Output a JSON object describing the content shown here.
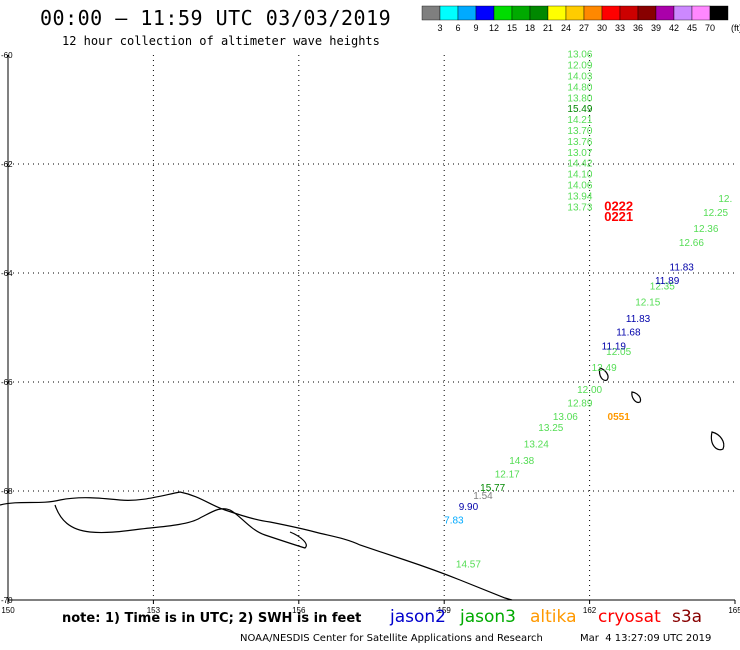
{
  "header": {
    "title": "00:00 — 11:59 UTC 03/03/2019",
    "subtitle": "12 hour collection of altimeter wave heights"
  },
  "colorbar": {
    "labels": [
      "3",
      "6",
      "9",
      "12",
      "15",
      "18",
      "21",
      "24",
      "27",
      "30",
      "33",
      "36",
      "39",
      "42",
      "45",
      "70"
    ],
    "unit": "(ft)",
    "colors": [
      "#7f7f7f",
      "#00ffff",
      "#00aaff",
      "#0000ff",
      "#00dd00",
      "#00aa00",
      "#008800",
      "#ffff00",
      "#ffcc00",
      "#ff8800",
      "#ff0000",
      "#cc0000",
      "#880000",
      "#aa00aa",
      "#cc88ff",
      "#ff88ff",
      "#000000"
    ]
  },
  "footer": {
    "note": "note: 1) Time is in UTC; 2) SWH is in feet",
    "credit": "NOAA/NESDIS Center for Satellite Applications and Research",
    "timestamp": "Mar  4 13:27:09 UTC 2019"
  },
  "satellites": [
    {
      "name": "jason2",
      "color": "#0000cc"
    },
    {
      "name": "jason3",
      "color": "#00aa00"
    },
    {
      "name": "altika",
      "color": "#ff9900"
    },
    {
      "name": "cryosat",
      "color": "#ff0000"
    },
    {
      "name": "s3a",
      "color": "#880000"
    }
  ],
  "chart_data": {
    "type": "scatter",
    "title": "12 hour collection of altimeter wave heights",
    "x_ticks": [
      "150",
      "153",
      "156",
      "159",
      "162",
      "165"
    ],
    "y_ticks": [
      "-60",
      "-62",
      "-64",
      "-66",
      "-68",
      "-70"
    ],
    "xlim": [
      150,
      165
    ],
    "ylim": [
      -70,
      -60
    ],
    "grid": true,
    "series": [
      {
        "name": "jason3",
        "points": [
          {
            "x": 161.8,
            "y": -60.05,
            "label": "13.06",
            "color": "#55dd55"
          },
          {
            "x": 161.8,
            "y": -60.25,
            "label": "12.09",
            "color": "#55dd55"
          },
          {
            "x": 161.8,
            "y": -60.45,
            "label": "14.03",
            "color": "#55dd55"
          },
          {
            "x": 161.8,
            "y": -60.65,
            "label": "14.80",
            "color": "#55dd55"
          },
          {
            "x": 161.8,
            "y": -60.85,
            "label": "13.80",
            "color": "#55dd55"
          },
          {
            "x": 161.8,
            "y": -61.05,
            "label": "15.49",
            "color": "#008800"
          },
          {
            "x": 161.8,
            "y": -61.25,
            "label": "14.21",
            "color": "#55dd55"
          },
          {
            "x": 161.8,
            "y": -61.45,
            "label": "13.70",
            "color": "#55dd55"
          },
          {
            "x": 161.8,
            "y": -61.65,
            "label": "13.76",
            "color": "#55dd55"
          },
          {
            "x": 161.8,
            "y": -61.85,
            "label": "13.07",
            "color": "#55dd55"
          },
          {
            "x": 161.8,
            "y": -62.05,
            "label": "14.42",
            "color": "#55dd55"
          },
          {
            "x": 161.8,
            "y": -62.25,
            "label": "14.10",
            "color": "#55dd55"
          },
          {
            "x": 161.8,
            "y": -62.45,
            "label": "14.06",
            "color": "#55dd55"
          },
          {
            "x": 161.8,
            "y": -62.65,
            "label": "13.94",
            "color": "#55dd55"
          },
          {
            "x": 161.8,
            "y": -62.85,
            "label": "13.73",
            "color": "#55dd55"
          },
          {
            "x": 164.8,
            "y": -62.7,
            "label": "12.",
            "color": "#55dd55"
          },
          {
            "x": 164.6,
            "y": -62.95,
            "label": "12.25",
            "color": "#55dd55"
          },
          {
            "x": 164.4,
            "y": -63.25,
            "label": "12.36",
            "color": "#55dd55"
          },
          {
            "x": 164.1,
            "y": -63.5,
            "label": "12.66",
            "color": "#55dd55"
          },
          {
            "x": 163.5,
            "y": -64.3,
            "label": "12.35",
            "color": "#55dd55"
          },
          {
            "x": 163.2,
            "y": -64.6,
            "label": "12.15",
            "color": "#55dd55"
          },
          {
            "x": 162.6,
            "y": -65.5,
            "label": "12.05",
            "color": "#55dd55"
          },
          {
            "x": 162.3,
            "y": -65.8,
            "label": "12.49",
            "color": "#55dd55"
          },
          {
            "x": 162.0,
            "y": -66.2,
            "label": "12.00",
            "color": "#55dd55"
          },
          {
            "x": 161.8,
            "y": -66.45,
            "label": "12.89",
            "color": "#55dd55"
          },
          {
            "x": 161.5,
            "y": -66.7,
            "label": "13.06",
            "color": "#55dd55"
          },
          {
            "x": 161.2,
            "y": -66.9,
            "label": "13.25",
            "color": "#55dd55"
          },
          {
            "x": 160.9,
            "y": -67.2,
            "label": "13.24",
            "color": "#55dd55"
          },
          {
            "x": 160.6,
            "y": -67.5,
            "label": "14.38",
            "color": "#55dd55"
          },
          {
            "x": 160.3,
            "y": -67.75,
            "label": "12.17",
            "color": "#55dd55"
          },
          {
            "x": 160.0,
            "y": -68.0,
            "label": "15.77",
            "color": "#008800"
          },
          {
            "x": 159.5,
            "y": -69.4,
            "label": "14.57",
            "color": "#55dd55"
          }
        ]
      },
      {
        "name": "jason2",
        "points": [
          {
            "x": 163.9,
            "y": -63.95,
            "label": "11.83",
            "color": "#0000aa"
          },
          {
            "x": 163.6,
            "y": -64.2,
            "label": "11.89",
            "color": "#0000aa"
          },
          {
            "x": 163.0,
            "y": -64.9,
            "label": "11.83",
            "color": "#0000aa"
          },
          {
            "x": 162.8,
            "y": -65.15,
            "label": "11.68",
            "color": "#0000aa"
          },
          {
            "x": 162.5,
            "y": -65.4,
            "label": "11.19",
            "color": "#0000aa"
          },
          {
            "x": 159.8,
            "y": -68.15,
            "label": "1.54",
            "color": "#7f7f7f"
          },
          {
            "x": 159.5,
            "y": -68.35,
            "label": "9.90",
            "color": "#0000aa"
          },
          {
            "x": 159.2,
            "y": -68.6,
            "label": "7.83",
            "color": "#00aaff"
          }
        ]
      },
      {
        "name": "cryosat",
        "points": [
          {
            "x": 162.6,
            "y": -62.85,
            "label": "0222",
            "color": "#ff0000"
          },
          {
            "x": 162.6,
            "y": -63.05,
            "label": "0221",
            "color": "#ff0000"
          }
        ]
      },
      {
        "name": "altika",
        "points": [
          {
            "x": 162.6,
            "y": -66.7,
            "label": "0551",
            "color": "#ff9900"
          }
        ]
      }
    ]
  }
}
